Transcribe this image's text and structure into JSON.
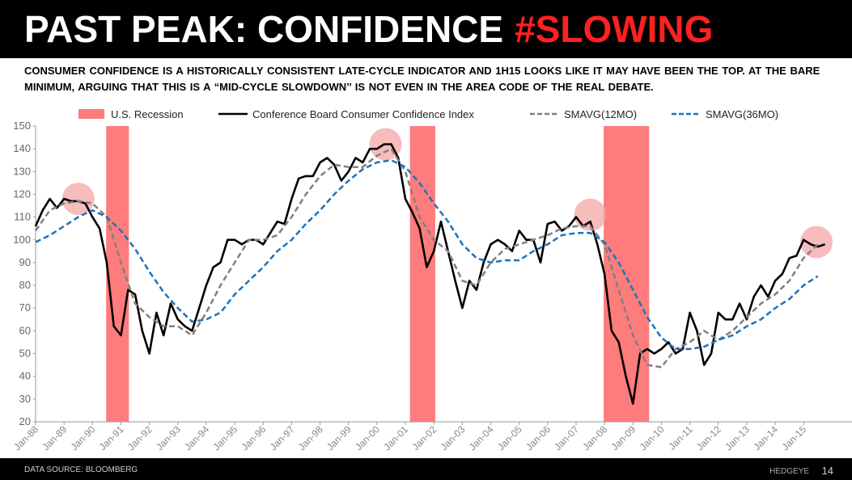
{
  "chart_data": {
    "type": "line",
    "title": "PAST PEAK: CONFIDENCE",
    "title_highlight": "#SLOWING",
    "subtitle": "CONSUMER CONFIDENCE IS A HISTORICALLY CONSISTENT LATE-CYCLE INDICATOR AND 1H15 LOOKS LIKE IT MAY HAVE BEEN THE TOP. AT THE BARE MINIMUM, ARGUING THAT THIS IS A “MID-CYCLE SLOWDOWN’’ IS NOT EVEN IN THE AREA CODE OF THE REAL DEBATE.",
    "source": "DATA SOURCE: BLOOMBERG",
    "brand": "HEDGEYE",
    "page_number": "14",
    "xlim": [
      1988,
      2016.7
    ],
    "xticks": [
      {
        "value": 1988,
        "label": "Jan-88"
      },
      {
        "value": 1989,
        "label": "Jan-89"
      },
      {
        "value": 1990,
        "label": "Jan-90"
      },
      {
        "value": 1991,
        "label": "Jan-91"
      },
      {
        "value": 1992,
        "label": "Jan-92"
      },
      {
        "value": 1993,
        "label": "Jan-93"
      },
      {
        "value": 1994,
        "label": "Jan-94"
      },
      {
        "value": 1995,
        "label": "Jan-95"
      },
      {
        "value": 1996,
        "label": "Jan-96"
      },
      {
        "value": 1997,
        "label": "Jan-97"
      },
      {
        "value": 1998,
        "label": "Jan-98"
      },
      {
        "value": 1999,
        "label": "Jan-99"
      },
      {
        "value": 2000,
        "label": "Jan-00"
      },
      {
        "value": 2001,
        "label": "Jan-01"
      },
      {
        "value": 2002,
        "label": "Jan-02"
      },
      {
        "value": 2003,
        "label": "Jan-03"
      },
      {
        "value": 2004,
        "label": "Jan-04"
      },
      {
        "value": 2005,
        "label": "Jan-05"
      },
      {
        "value": 2006,
        "label": "Jan-06"
      },
      {
        "value": 2007,
        "label": "Jan-07"
      },
      {
        "value": 2008,
        "label": "Jan-08"
      },
      {
        "value": 2009,
        "label": "Jan-09"
      },
      {
        "value": 2010,
        "label": "Jan-10"
      },
      {
        "value": 2011,
        "label": "Jan-11"
      },
      {
        "value": 2012,
        "label": "Jan-12"
      },
      {
        "value": 2013,
        "label": "Jan-13"
      },
      {
        "value": 2014,
        "label": "Jan-14"
      },
      {
        "value": 2015,
        "label": "Jan-15"
      }
    ],
    "ylim": [
      20,
      150
    ],
    "yticks": [
      20,
      30,
      40,
      50,
      60,
      70,
      80,
      90,
      100,
      110,
      120,
      130,
      140,
      150
    ],
    "recessions": {
      "name": "U.S. Recession",
      "color": "#ff7c7c",
      "spans": [
        [
          1990.48,
          1991.28
        ],
        [
          2001.16,
          2002.05
        ],
        [
          2007.97,
          2009.57
        ]
      ]
    },
    "highlights": {
      "color": "#f4a0a0",
      "points": [
        [
          1989.5,
          118
        ],
        [
          2000.3,
          142
        ],
        [
          2007.5,
          111
        ],
        [
          2015.45,
          99
        ]
      ]
    },
    "series": [
      {
        "name": "Conference Board Consumer Confidence Index",
        "color": "#000000",
        "dash": false,
        "x": [
          1988,
          1988.25,
          1988.5,
          1988.75,
          1989,
          1989.25,
          1989.5,
          1989.75,
          1990,
          1990.25,
          1990.5,
          1990.75,
          1991,
          1991.25,
          1991.5,
          1991.75,
          1992,
          1992.25,
          1992.5,
          1992.75,
          1993,
          1993.25,
          1993.5,
          1993.75,
          1994,
          1994.25,
          1994.5,
          1994.75,
          1995,
          1995.25,
          1995.5,
          1995.75,
          1996,
          1996.25,
          1996.5,
          1996.75,
          1997,
          1997.25,
          1997.5,
          1997.75,
          1998,
          1998.25,
          1998.5,
          1998.75,
          1999,
          1999.25,
          1999.5,
          1999.75,
          2000,
          2000.25,
          2000.5,
          2000.75,
          2001,
          2001.25,
          2001.5,
          2001.75,
          2002,
          2002.25,
          2002.5,
          2002.75,
          2003,
          2003.25,
          2003.5,
          2003.75,
          2004,
          2004.25,
          2004.5,
          2004.75,
          2005,
          2005.25,
          2005.5,
          2005.75,
          2006,
          2006.25,
          2006.5,
          2006.75,
          2007,
          2007.25,
          2007.5,
          2007.75,
          2008,
          2008.25,
          2008.5,
          2008.75,
          2009,
          2009.25,
          2009.5,
          2009.75,
          2010,
          2010.25,
          2010.5,
          2010.75,
          2011,
          2011.25,
          2011.5,
          2011.75,
          2012,
          2012.25,
          2012.5,
          2012.75,
          2013,
          2013.25,
          2013.5,
          2013.75,
          2014,
          2014.25,
          2014.5,
          2014.75,
          2015,
          2015.25,
          2015.5,
          2015.75
        ],
        "values": [
          106,
          113,
          118,
          114,
          118,
          117,
          117,
          116,
          110,
          105,
          90,
          62,
          58,
          78,
          76,
          60,
          50,
          68,
          58,
          72,
          65,
          62,
          60,
          70,
          80,
          88,
          90,
          100,
          100,
          98,
          100,
          100,
          98,
          103,
          108,
          107,
          118,
          127,
          128,
          128,
          134,
          136,
          133,
          126,
          130,
          136,
          134,
          140,
          140,
          142,
          142,
          136,
          118,
          112,
          105,
          88,
          95,
          108,
          95,
          82,
          70,
          82,
          78,
          90,
          98,
          100,
          98,
          95,
          104,
          100,
          100,
          90,
          107,
          108,
          104,
          106,
          110,
          106,
          108,
          98,
          85,
          60,
          55,
          40,
          28,
          50,
          52,
          50,
          52,
          55,
          50,
          52,
          68,
          60,
          45,
          50,
          68,
          65,
          65,
          72,
          65,
          75,
          80,
          75,
          82,
          85,
          92,
          93,
          100,
          98,
          97,
          98
        ]
      },
      {
        "name": "SMAVG(12MO)",
        "color": "#808080",
        "dash": true,
        "x": [
          1988,
          1988.5,
          1989,
          1989.5,
          1990,
          1990.5,
          1991,
          1991.5,
          1992,
          1992.5,
          1993,
          1993.5,
          1994,
          1994.5,
          1995,
          1995.5,
          1996,
          1996.5,
          1997,
          1997.5,
          1998,
          1998.5,
          1999,
          1999.5,
          2000,
          2000.5,
          2001,
          2001.5,
          2002,
          2002.5,
          2003,
          2003.5,
          2004,
          2004.5,
          2005,
          2005.5,
          2006,
          2006.5,
          2007,
          2007.5,
          2008,
          2008.5,
          2009,
          2009.5,
          2010,
          2010.5,
          2011,
          2011.5,
          2012,
          2012.5,
          2013,
          2013.5,
          2014,
          2014.5,
          2015,
          2015.5
        ],
        "values": [
          104,
          113,
          116,
          117,
          116,
          110,
          90,
          72,
          66,
          62,
          62,
          58,
          68,
          80,
          90,
          100,
          100,
          102,
          110,
          120,
          128,
          133,
          132,
          132,
          137,
          140,
          130,
          110,
          100,
          95,
          82,
          80,
          90,
          96,
          98,
          100,
          102,
          105,
          106,
          106,
          98,
          78,
          58,
          45,
          44,
          52,
          55,
          60,
          56,
          60,
          66,
          72,
          76,
          82,
          92,
          98
        ]
      },
      {
        "name": "SMAVG(36MO)",
        "color": "#1f72bb",
        "dash": true,
        "x": [
          1988,
          1988.5,
          1989,
          1989.5,
          1990,
          1990.5,
          1991,
          1991.5,
          1992,
          1992.5,
          1993,
          1993.5,
          1994,
          1994.5,
          1995,
          1995.5,
          1996,
          1996.5,
          1997,
          1997.5,
          1998,
          1998.5,
          1999,
          1999.5,
          2000,
          2000.5,
          2001,
          2001.5,
          2002,
          2002.5,
          2003,
          2003.5,
          2004,
          2004.5,
          2005,
          2005.5,
          2006,
          2006.5,
          2007,
          2007.5,
          2008,
          2008.5,
          2009,
          2009.5,
          2010,
          2010.5,
          2011,
          2011.5,
          2012,
          2012.5,
          2013,
          2013.5,
          2014,
          2014.5,
          2015,
          2015.5
        ],
        "values": [
          99,
          102,
          106,
          110,
          113,
          110,
          104,
          96,
          86,
          77,
          70,
          64,
          65,
          68,
          76,
          82,
          88,
          95,
          100,
          107,
          113,
          120,
          126,
          131,
          134,
          135,
          132,
          125,
          116,
          108,
          98,
          92,
          90,
          91,
          91,
          95,
          98,
          102,
          103,
          103,
          99,
          90,
          78,
          66,
          57,
          52,
          52,
          53,
          56,
          58,
          62,
          65,
          70,
          74,
          80,
          84
        ]
      }
    ]
  }
}
